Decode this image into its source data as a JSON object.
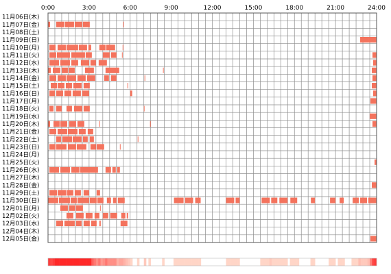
{
  "chart_data": {
    "type": "heatmap",
    "title": "",
    "xlabel": "",
    "ylabel": "",
    "x_range_hours": [
      0,
      24
    ],
    "x_ticks": [
      "0:00",
      "3:00",
      "6:00",
      "9:00",
      "12:00",
      "15:00",
      "18:00",
      "21:00",
      "24:00"
    ],
    "grid": true,
    "colors": {
      "bar": "#f4735d",
      "bar_dark": "#ef4a3a",
      "grid": "#8c8c8c",
      "frame": "#555555"
    },
    "rows": [
      {
        "label": "11月06日(木)",
        "intervals": []
      },
      {
        "label": "11月07日(金)",
        "intervals": [
          [
            0.0,
            0.15
          ],
          [
            0.6,
            1.2
          ],
          [
            1.25,
            1.9
          ],
          [
            1.95,
            2.5
          ],
          [
            2.55,
            3.05
          ],
          [
            5.5,
            5.55
          ]
        ]
      },
      {
        "label": "11月08日(土)",
        "intervals": []
      },
      {
        "label": "11月09日(日)",
        "intervals": [
          [
            22.8,
            23.4
          ],
          [
            23.4,
            24.0
          ]
        ]
      },
      {
        "label": "11月10日(月)",
        "intervals": [
          [
            0.1,
            0.55
          ],
          [
            0.7,
            1.3
          ],
          [
            1.35,
            2.2
          ],
          [
            2.25,
            2.85
          ],
          [
            2.95,
            3.15
          ],
          [
            3.75,
            4.2
          ],
          [
            4.25,
            4.9
          ],
          [
            5.45,
            5.5
          ]
        ]
      },
      {
        "label": "11月11日(火)",
        "intervals": [
          [
            0.1,
            0.6
          ],
          [
            0.65,
            1.6
          ],
          [
            1.7,
            2.7
          ],
          [
            2.75,
            3.2
          ],
          [
            4.0,
            4.5
          ],
          [
            4.6,
            5.0
          ],
          [
            5.4,
            5.45
          ],
          [
            23.7,
            24.0
          ]
        ]
      },
      {
        "label": "11月12日(水)",
        "intervals": [
          [
            0.1,
            0.8
          ],
          [
            0.9,
            1.6
          ],
          [
            1.7,
            2.2
          ],
          [
            2.4,
            3.0
          ],
          [
            3.1,
            3.5
          ],
          [
            3.7,
            4.3
          ],
          [
            23.75,
            24.0
          ]
        ]
      },
      {
        "label": "11月13日(木)",
        "intervals": [
          [
            0.0,
            0.2
          ],
          [
            0.35,
            0.9
          ],
          [
            1.0,
            1.45
          ],
          [
            1.5,
            1.95
          ],
          [
            2.7,
            3.35
          ],
          [
            4.2,
            5.2
          ],
          [
            8.4,
            8.45
          ],
          [
            23.65,
            24.0
          ]
        ]
      },
      {
        "label": "11月14日(金)",
        "intervals": [
          [
            0.1,
            0.6
          ],
          [
            0.7,
            1.3
          ],
          [
            1.35,
            2.05
          ],
          [
            2.15,
            2.75
          ],
          [
            2.85,
            3.45
          ],
          [
            4.1,
            4.45
          ],
          [
            4.6,
            5.0
          ],
          [
            7.05,
            7.1
          ],
          [
            23.7,
            24.0
          ]
        ]
      },
      {
        "label": "11月15日(土)",
        "intervals": [
          [
            0.2,
            0.65
          ],
          [
            0.7,
            1.2
          ],
          [
            1.3,
            1.75
          ],
          [
            1.85,
            2.45
          ],
          [
            2.6,
            3.05
          ],
          [
            5.8,
            5.85
          ],
          [
            23.65,
            24.0
          ]
        ]
      },
      {
        "label": "11月16日(日)",
        "intervals": [
          [
            0.1,
            0.5
          ],
          [
            0.6,
            1.1
          ],
          [
            1.2,
            1.7
          ],
          [
            1.8,
            2.4
          ],
          [
            2.5,
            3.0
          ],
          [
            6.0,
            6.15
          ],
          [
            23.75,
            24.0
          ]
        ]
      },
      {
        "label": "11月17日(月)",
        "intervals": [
          [
            23.55,
            24.0
          ]
        ]
      },
      {
        "label": "11月18日(火)",
        "intervals": [
          [
            0.1,
            0.4
          ],
          [
            0.6,
            1.0
          ],
          [
            1.35,
            1.75
          ],
          [
            1.9,
            2.5
          ],
          [
            2.6,
            3.05
          ],
          [
            7.0,
            7.05
          ]
        ]
      },
      {
        "label": "11月19日(水)",
        "intervals": [
          [
            23.5,
            24.0
          ]
        ]
      },
      {
        "label": "11月20日(木)",
        "intervals": [
          [
            0.0,
            0.15
          ],
          [
            0.4,
            0.85
          ],
          [
            0.9,
            1.4
          ],
          [
            1.55,
            2.05
          ],
          [
            2.15,
            2.65
          ],
          [
            3.75,
            3.8
          ],
          [
            7.45,
            7.5
          ],
          [
            23.7,
            24.0
          ]
        ]
      },
      {
        "label": "11月21日(金)",
        "intervals": [
          [
            0.1,
            0.6
          ],
          [
            0.7,
            1.4
          ],
          [
            1.45,
            2.15
          ],
          [
            2.25,
            2.75
          ],
          [
            2.9,
            3.3
          ]
        ]
      },
      {
        "label": "11月22日(土)",
        "intervals": [
          [
            0.6,
            0.95
          ],
          [
            1.05,
            1.75
          ],
          [
            1.8,
            2.45
          ],
          [
            2.55,
            2.9
          ],
          [
            3.05,
            3.35
          ],
          [
            6.55,
            6.6
          ]
        ]
      },
      {
        "label": "11月23日(日)",
        "intervals": [
          [
            0.1,
            0.55
          ],
          [
            0.6,
            1.35
          ],
          [
            1.45,
            2.05
          ],
          [
            2.1,
            2.8
          ],
          [
            3.1,
            3.5
          ],
          [
            3.55,
            4.1
          ],
          [
            5.25,
            5.3
          ]
        ]
      },
      {
        "label": "11月24日(月)",
        "intervals": []
      },
      {
        "label": "11月25日(火)",
        "intervals": [
          [
            23.85,
            24.0
          ]
        ]
      },
      {
        "label": "11月26日(水)",
        "intervals": [
          [
            0.1,
            0.8
          ],
          [
            0.9,
            1.6
          ],
          [
            1.7,
            2.3
          ],
          [
            2.35,
            3.65
          ],
          [
            4.2,
            4.6
          ],
          [
            4.7,
            4.95
          ],
          [
            5.05,
            5.25
          ]
        ]
      },
      {
        "label": "11月27日(木)",
        "intervals": []
      },
      {
        "label": "11月28日(金)",
        "intervals": [
          [
            23.65,
            24.0
          ]
        ]
      },
      {
        "label": "11月29日(土)",
        "intervals": [
          [
            0.1,
            0.65
          ],
          [
            0.7,
            1.35
          ],
          [
            1.4,
            1.85
          ],
          [
            1.95,
            2.4
          ],
          [
            2.6,
            3.0
          ],
          [
            3.55,
            3.8
          ]
        ]
      },
      {
        "label": "11月30日(日)",
        "intervals": [
          [
            0.0,
            0.75
          ],
          [
            0.8,
            1.6
          ],
          [
            1.65,
            2.1
          ],
          [
            2.15,
            3.0
          ],
          [
            3.05,
            3.55
          ],
          [
            3.6,
            4.05
          ],
          [
            4.3,
            4.6
          ],
          [
            4.75,
            5.0
          ],
          [
            5.1,
            5.6
          ],
          [
            9.2,
            9.9
          ],
          [
            10.0,
            10.6
          ],
          [
            10.75,
            11.15
          ],
          [
            13.0,
            13.6
          ],
          [
            13.7,
            14.0
          ],
          [
            15.6,
            16.2
          ],
          [
            16.3,
            16.75
          ],
          [
            16.9,
            17.5
          ],
          [
            17.7,
            18.2
          ],
          [
            19.2,
            19.5
          ],
          [
            20.6,
            21.0
          ],
          [
            21.3,
            21.6
          ],
          [
            22.25,
            22.7
          ],
          [
            22.8,
            23.3
          ],
          [
            23.4,
            24.0
          ]
        ]
      },
      {
        "label": "12月01日(月)",
        "intervals": [
          [
            0.9,
            1.45
          ],
          [
            1.55,
            2.0
          ],
          [
            2.05,
            2.55
          ],
          [
            3.8,
            3.85
          ]
        ]
      },
      {
        "label": "12月02日(火)",
        "intervals": [
          [
            1.35,
            1.85
          ],
          [
            2.05,
            2.6
          ],
          [
            2.75,
            3.25
          ],
          [
            3.4,
            3.75
          ],
          [
            4.0,
            4.4
          ],
          [
            4.55,
            5.05
          ],
          [
            5.35,
            5.65
          ],
          [
            5.75,
            5.85
          ]
        ]
      },
      {
        "label": "12月03日(水)",
        "intervals": [
          [
            0.6,
            1.1
          ],
          [
            1.2,
            1.95
          ],
          [
            2.05,
            2.45
          ],
          [
            2.6,
            3.05
          ],
          [
            3.15,
            3.55
          ],
          [
            3.75,
            3.85
          ],
          [
            5.3,
            5.8
          ]
        ]
      },
      {
        "label": "12月04日(木)",
        "intervals": []
      },
      {
        "label": "12月05日(金)",
        "intervals": [
          [
            23.55,
            24.0
          ]
        ]
      }
    ]
  }
}
